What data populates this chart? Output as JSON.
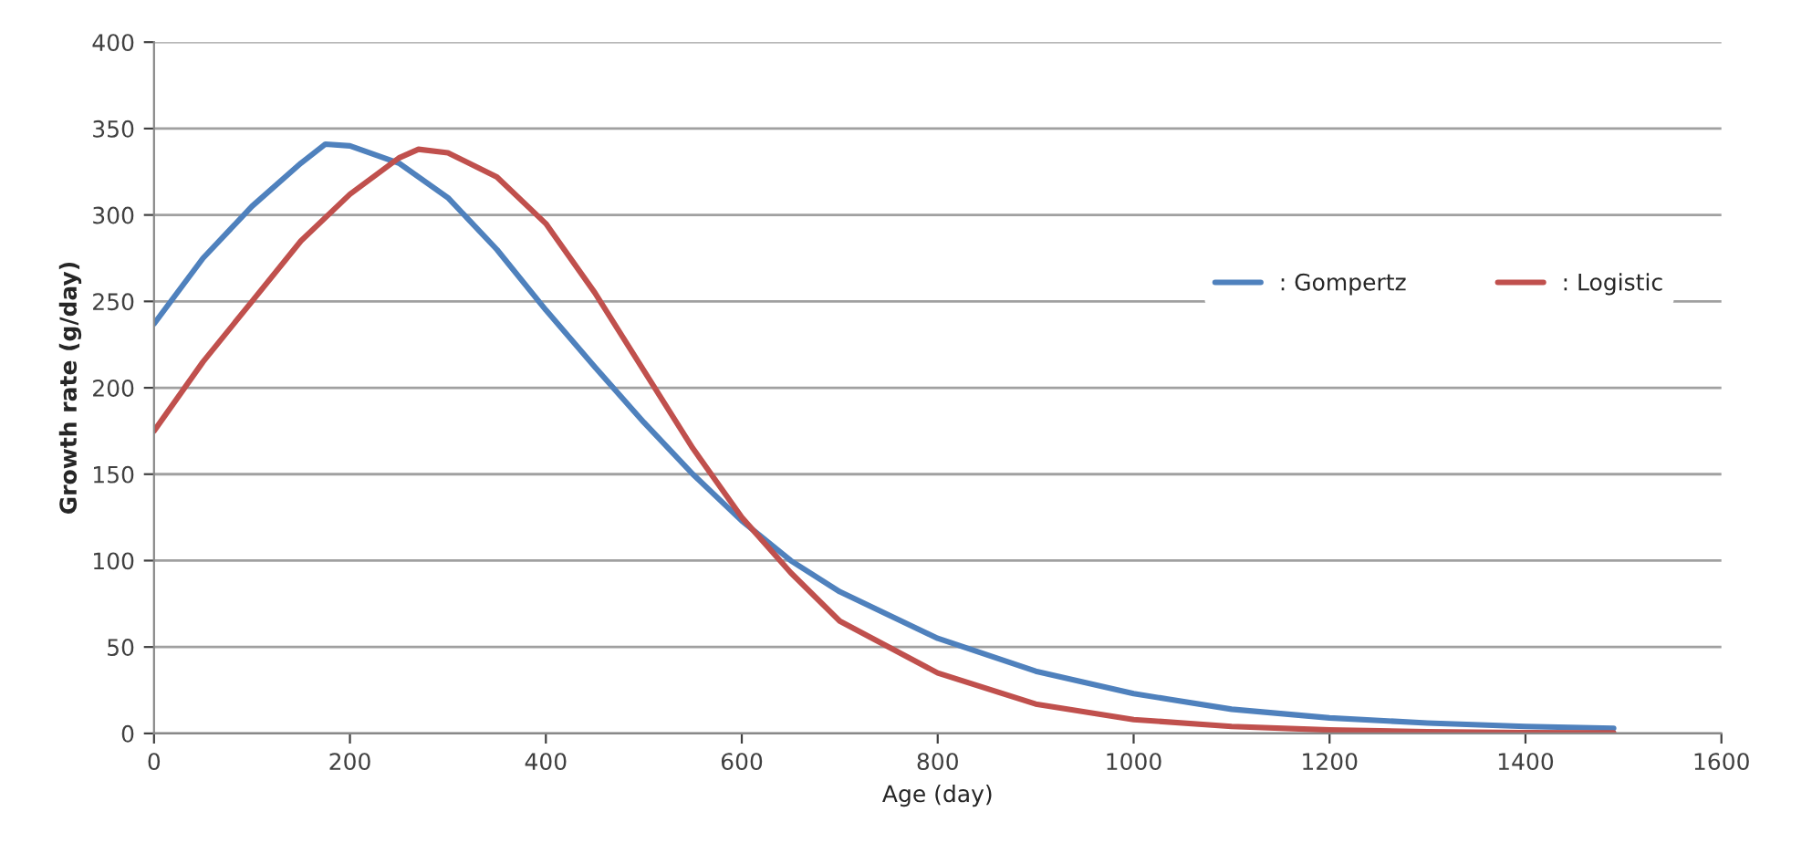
{
  "chart_data": {
    "type": "line",
    "xlabel": "Age (day)",
    "ylabel": "Growth rate (g/day)",
    "xlim": [
      0,
      1600
    ],
    "xticks": [
      0,
      200,
      400,
      600,
      800,
      1000,
      1200,
      1400,
      1600
    ],
    "ylim": [
      0,
      400
    ],
    "yticks": [
      0,
      50,
      100,
      150,
      200,
      250,
      300,
      350,
      400
    ],
    "grid": "y",
    "legend": "right",
    "marker": "none",
    "line_style": "solid",
    "series": [
      {
        "name": ": Gompertz",
        "color": "#4f81bd",
        "x": [
          0,
          50,
          100,
          150,
          175,
          200,
          250,
          300,
          350,
          400,
          450,
          500,
          550,
          600,
          650,
          700,
          800,
          900,
          1000,
          1100,
          1200,
          1300,
          1400,
          1490
        ],
        "values": [
          237,
          275,
          305,
          330,
          341,
          340,
          330,
          310,
          280,
          245,
          212,
          180,
          150,
          123,
          100,
          82,
          55,
          36,
          23,
          14,
          9,
          6,
          4,
          3
        ]
      },
      {
        "name": ": Logistic",
        "color": "#c0504d",
        "x": [
          0,
          50,
          100,
          150,
          200,
          250,
          270,
          300,
          350,
          400,
          450,
          500,
          550,
          600,
          650,
          700,
          800,
          900,
          1000,
          1100,
          1200,
          1300,
          1400,
          1490
        ],
        "values": [
          175,
          215,
          250,
          285,
          312,
          333,
          338,
          336,
          322,
          295,
          255,
          210,
          165,
          125,
          93,
          65,
          35,
          17,
          8,
          4,
          2,
          1,
          0.5,
          0.3
        ]
      }
    ]
  }
}
